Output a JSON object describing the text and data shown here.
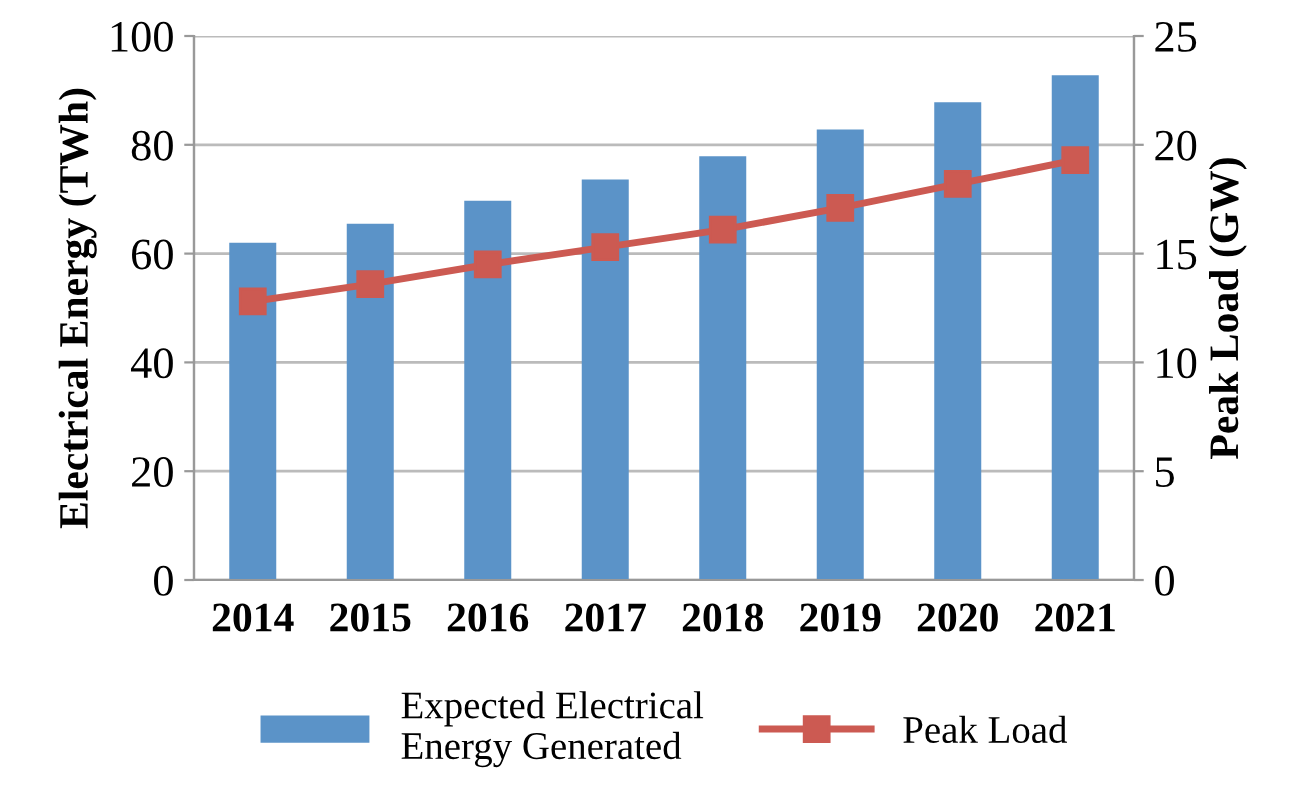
{
  "chart_data": {
    "type": "bar",
    "categories": [
      "2014",
      "2015",
      "2016",
      "2017",
      "2018",
      "2019",
      "2020",
      "2021"
    ],
    "ylabel": "Electrical Energy (TWh)",
    "y2label": "Peak Load (GW)",
    "series": [
      {
        "name": "Expected Electrical\nEnergy Generated",
        "color": "#5b93c8",
        "values": [
          62,
          65.5,
          69.7,
          73.6,
          77.9,
          82.8,
          87.8,
          92.8
        ]
      },
      {
        "name": "Peak Load",
        "type": "line",
        "axis": "y2",
        "color": "#cc5a52",
        "marker": "square",
        "values": [
          12.8,
          13.6,
          14.5,
          15.3,
          16.1,
          17.1,
          18.2,
          19.3
        ]
      }
    ],
    "ylim": [
      0,
      100
    ],
    "yticks": [
      0,
      20,
      40,
      60,
      80,
      100
    ],
    "y2lim": [
      0,
      25
    ],
    "y2ticks": [
      0,
      5,
      10,
      15,
      20,
      25
    ],
    "grid": "y",
    "legend": "bottom"
  }
}
